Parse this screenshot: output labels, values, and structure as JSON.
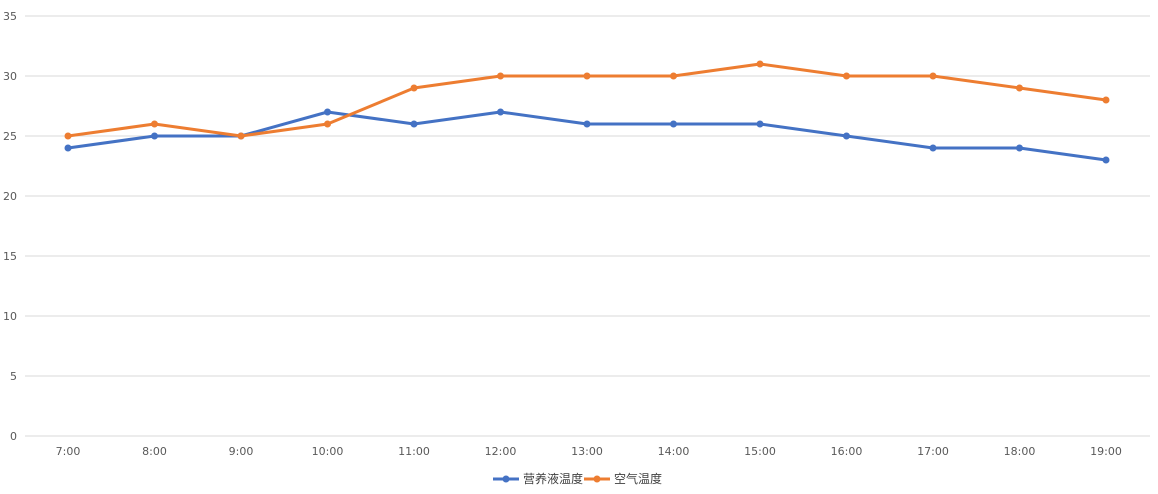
{
  "chart_data": {
    "type": "line",
    "categories": [
      "7:00",
      "8:00",
      "9:00",
      "10:00",
      "11:00",
      "12:00",
      "13:00",
      "14:00",
      "15:00",
      "16:00",
      "17:00",
      "18:00",
      "19:00"
    ],
    "series": [
      {
        "name": "营养液温度",
        "color": "#4472C4",
        "values": [
          24,
          25,
          25,
          27,
          26,
          27,
          26,
          26,
          26,
          25,
          24,
          24,
          23
        ]
      },
      {
        "name": "空气温度",
        "color": "#ED7D31",
        "values": [
          25,
          26,
          25,
          26,
          29,
          30,
          30,
          30,
          31,
          30,
          30,
          29,
          28
        ]
      }
    ],
    "ylim": [
      0,
      35
    ],
    "yticks": [
      0,
      5,
      10,
      15,
      20,
      25,
      30,
      35
    ],
    "grid": true,
    "gridColor": "#D9D9D9",
    "legend_position": "bottom"
  }
}
